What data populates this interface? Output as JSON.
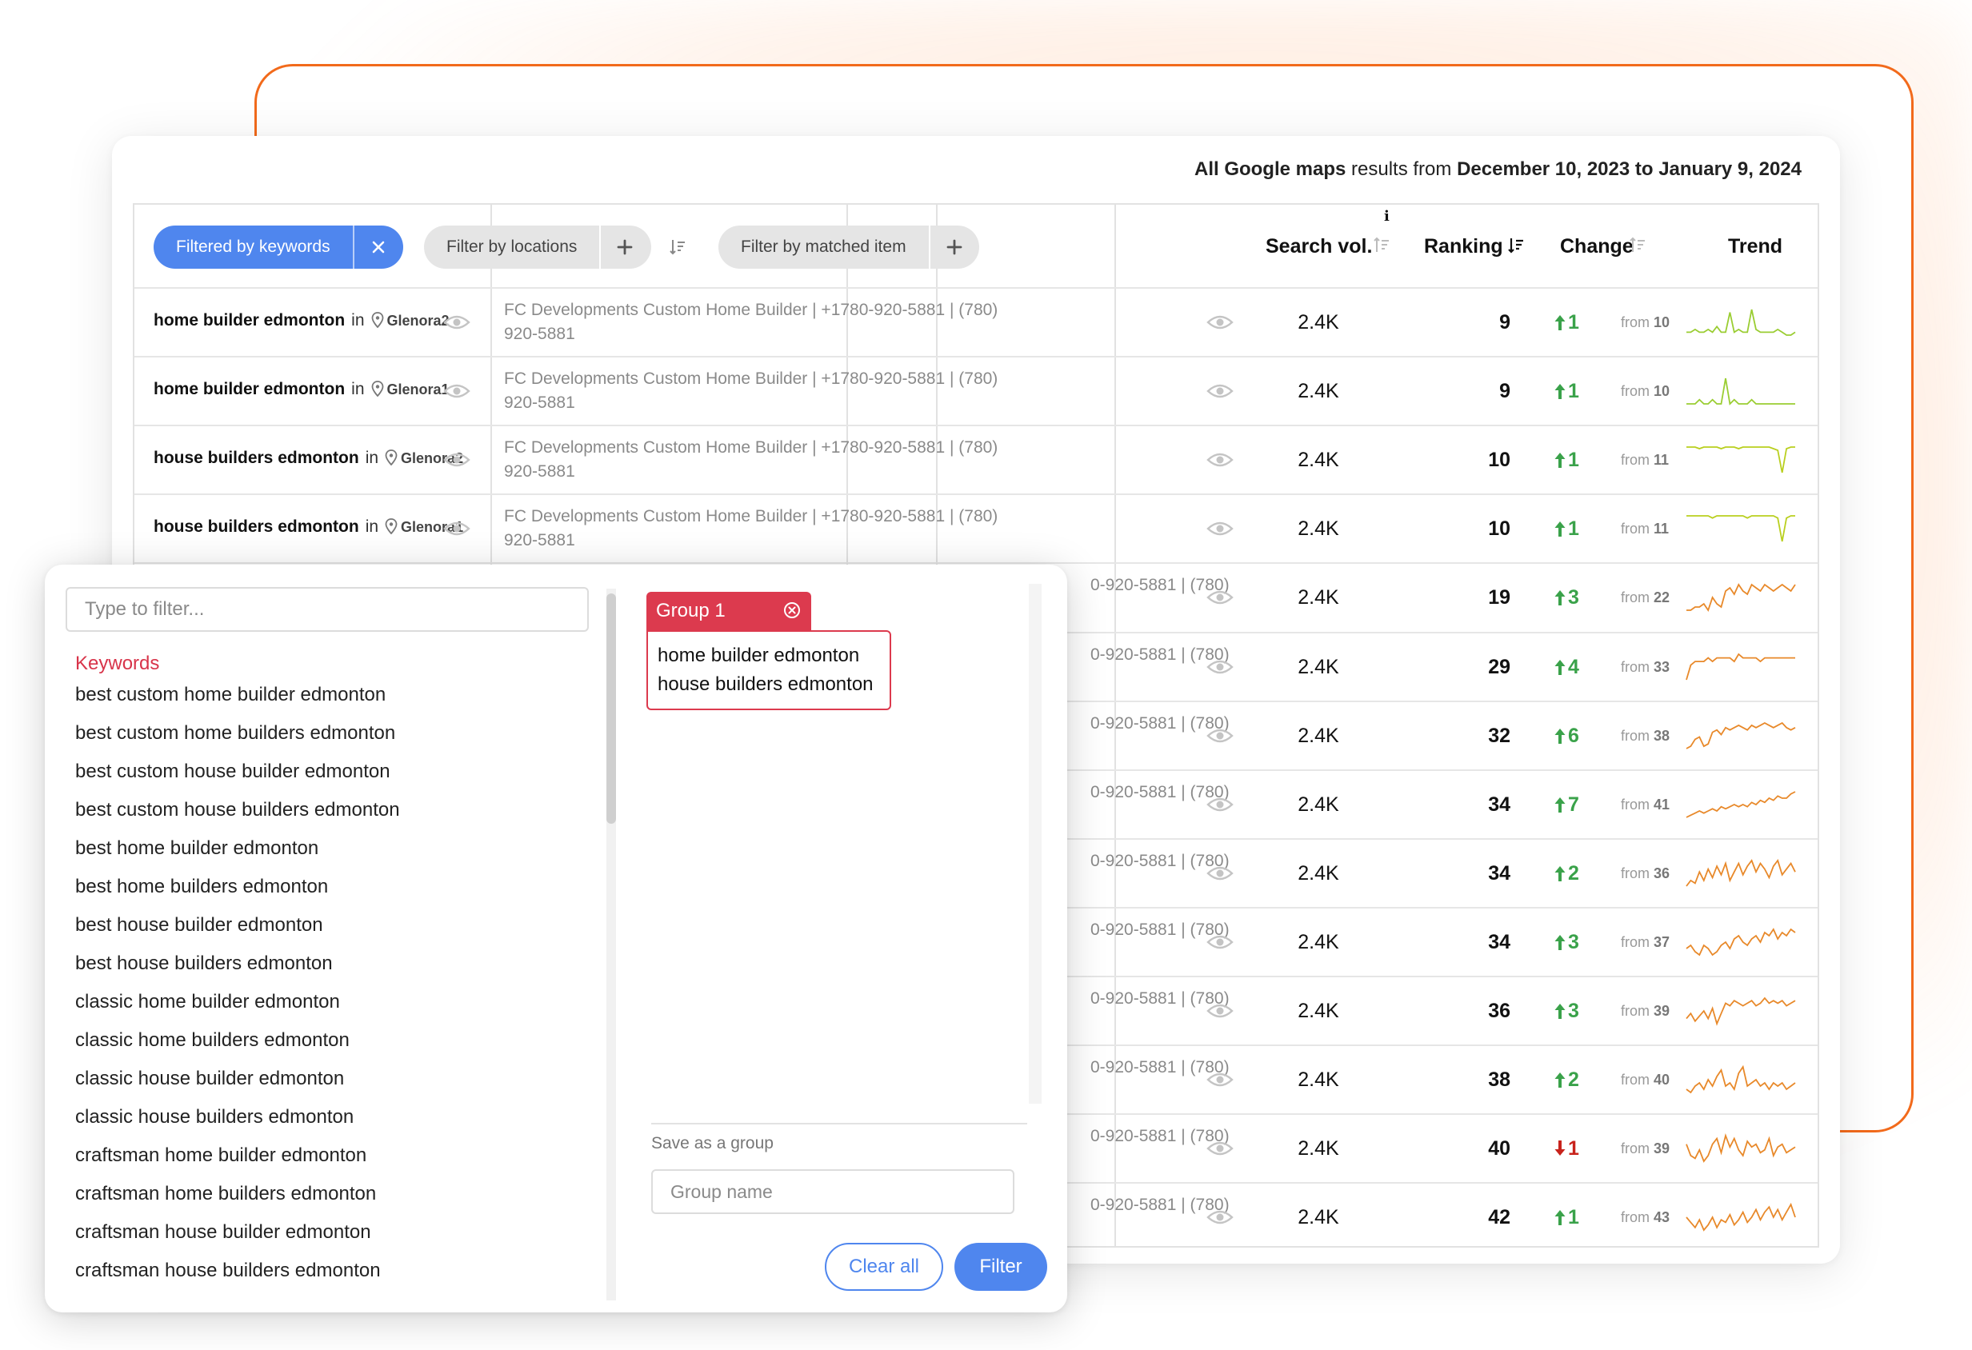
{
  "header": {
    "prefix": "All Google maps",
    "middle": " results from ",
    "range": "December 10, 2023 to January 9, 2024"
  },
  "filters": {
    "keywords_label": "Filtered by keywords",
    "locations_label": "Filter by locations",
    "matched_label": "Filter by matched item"
  },
  "columns": {
    "search_vol": "Search vol.",
    "ranking": "Ranking",
    "change": "Change",
    "trend": "Trend",
    "info": "i"
  },
  "rows": [
    {
      "keyword": "home builder edmonton",
      "in": "in",
      "location": "Glenora2",
      "matched1": "FC Developments Custom Home Builder | +1780-920-5881 | (780)",
      "matched2": "920-5881",
      "vol": "2.4K",
      "rank": "9",
      "dir": "up",
      "change": "1",
      "from_label": "from",
      "from": "10",
      "trend": [
        5,
        5,
        6,
        5,
        5,
        6,
        5,
        7,
        5,
        5,
        12,
        5,
        6,
        5,
        5,
        13,
        6,
        5,
        5,
        5,
        5,
        6,
        5,
        4,
        4,
        5
      ],
      "trend_color": "#9acd32"
    },
    {
      "keyword": "home builder edmonton",
      "in": "in",
      "location": "Glenora1",
      "matched1": "FC Developments Custom Home Builder | +1780-920-5881 | (780)",
      "matched2": "920-5881",
      "vol": "2.4K",
      "rank": "9",
      "dir": "up",
      "change": "1",
      "from_label": "from",
      "from": "10",
      "trend": [
        5,
        5,
        5,
        6,
        5,
        5,
        6,
        5,
        5,
        11,
        5,
        6,
        5,
        5,
        5,
        6,
        5,
        5,
        5,
        5,
        5,
        5,
        5,
        5,
        5,
        5
      ],
      "trend_color": "#9acd32"
    },
    {
      "keyword": "house builders edmonton",
      "in": "in",
      "location": "Glenora2",
      "matched1": "FC Developments Custom Home Builder | +1780-920-5881 | (780)",
      "matched2": "920-5881",
      "vol": "2.4K",
      "rank": "10",
      "dir": "up",
      "change": "1",
      "from_label": "from",
      "from": "11",
      "trend": [
        10,
        10,
        10,
        9,
        10,
        10,
        10,
        10,
        9,
        10,
        10,
        10,
        9,
        10,
        10,
        10,
        10,
        10,
        10,
        10,
        9,
        8,
        -6,
        9,
        10,
        10
      ],
      "trend_color": "#b9cf1e"
    },
    {
      "keyword": "house builders edmonton",
      "in": "in",
      "location": "Glenora1",
      "matched1": "FC Developments Custom Home Builder | +1780-920-5881 | (780)",
      "matched2": "920-5881",
      "vol": "2.4K",
      "rank": "10",
      "dir": "up",
      "change": "1",
      "from_label": "from",
      "from": "11",
      "trend": [
        10,
        10,
        10,
        10,
        10,
        10,
        9,
        10,
        10,
        10,
        10,
        10,
        10,
        10,
        9,
        10,
        10,
        10,
        10,
        10,
        10,
        9,
        -2,
        9,
        10,
        10
      ],
      "trend_color": "#b9cf1e"
    },
    {
      "keyword": "",
      "in": "",
      "location": "",
      "matched1": "0-920-5881 | (780)",
      "matched2": "",
      "vol": "2.4K",
      "rank": "19",
      "dir": "up",
      "change": "3",
      "from_label": "from",
      "from": "22",
      "trend": [
        4,
        4,
        5,
        5,
        6,
        4,
        8,
        6,
        5,
        10,
        11,
        9,
        12,
        10,
        9,
        12,
        11,
        10,
        12,
        11,
        10,
        11,
        12,
        11,
        10,
        12
      ],
      "trend_color": "#e8892a"
    },
    {
      "keyword": "",
      "in": "",
      "location": "",
      "matched1": "0-920-5881 | (780)",
      "matched2": "",
      "vol": "2.4K",
      "rank": "29",
      "dir": "up",
      "change": "4",
      "from_label": "from",
      "from": "33",
      "trend": [
        4,
        8,
        9,
        9,
        9,
        10,
        9,
        10,
        10,
        10,
        10,
        9,
        11,
        10,
        10,
        10,
        10,
        9,
        10,
        10,
        10,
        10,
        10,
        10,
        10,
        10
      ],
      "trend_color": "#e8892a"
    },
    {
      "keyword": "",
      "in": "",
      "location": "",
      "matched1": "0-920-5881 | (780)",
      "matched2": "",
      "vol": "2.4K",
      "rank": "32",
      "dir": "up",
      "change": "6",
      "from_label": "from",
      "from": "38",
      "trend": [
        3,
        4,
        7,
        8,
        4,
        5,
        10,
        11,
        9,
        12,
        11,
        12,
        13,
        12,
        11,
        13,
        12,
        13,
        14,
        13,
        12,
        13,
        14,
        12,
        11,
        12
      ],
      "trend_color": "#e8892a"
    },
    {
      "keyword": "",
      "in": "",
      "location": "",
      "matched1": "0-920-5881 | (780)",
      "matched2": "",
      "vol": "2.4K",
      "rank": "34",
      "dir": "up",
      "change": "7",
      "from_label": "from",
      "from": "41",
      "trend": [
        3,
        4,
        5,
        6,
        5,
        6,
        7,
        6,
        8,
        7,
        8,
        9,
        8,
        9,
        8,
        10,
        9,
        11,
        10,
        12,
        11,
        13,
        12,
        12,
        14,
        15
      ],
      "trend_color": "#e8892a"
    },
    {
      "keyword": "",
      "in": "",
      "location": "",
      "matched1": "0-920-5881 | (780)",
      "matched2": "",
      "vol": "2.4K",
      "rank": "34",
      "dir": "up",
      "change": "2",
      "from_label": "from",
      "from": "36",
      "trend": [
        4,
        6,
        5,
        9,
        6,
        10,
        7,
        11,
        8,
        12,
        6,
        9,
        12,
        8,
        11,
        13,
        9,
        12,
        10,
        7,
        11,
        13,
        8,
        10,
        12,
        9
      ],
      "trend_color": "#e8892a"
    },
    {
      "keyword": "",
      "in": "",
      "location": "",
      "matched1": "0-920-5881 | (780)",
      "matched2": "",
      "vol": "2.4K",
      "rank": "34",
      "dir": "up",
      "change": "3",
      "from_label": "from",
      "from": "37",
      "trend": [
        7,
        8,
        6,
        5,
        8,
        7,
        5,
        6,
        8,
        9,
        7,
        10,
        11,
        9,
        8,
        10,
        11,
        9,
        12,
        11,
        13,
        10,
        12,
        11,
        13,
        12
      ],
      "trend_color": "#e8892a"
    },
    {
      "keyword": "",
      "in": "",
      "location": "",
      "matched1": "0-920-5881 | (780)",
      "matched2": "",
      "vol": "2.4K",
      "rank": "36",
      "dir": "up",
      "change": "3",
      "from_label": "from",
      "from": "39",
      "trend": [
        6,
        8,
        5,
        7,
        9,
        6,
        10,
        4,
        8,
        12,
        11,
        13,
        12,
        11,
        12,
        13,
        11,
        12,
        14,
        12,
        13,
        12,
        13,
        11,
        12,
        13
      ],
      "trend_color": "#e8892a"
    },
    {
      "keyword": "",
      "in": "",
      "location": "",
      "matched1": "0-920-5881 | (780)",
      "matched2": "",
      "vol": "2.4K",
      "rank": "38",
      "dir": "up",
      "change": "2",
      "from_label": "from",
      "from": "40",
      "trend": [
        8,
        7,
        9,
        10,
        8,
        11,
        9,
        12,
        14,
        9,
        10,
        8,
        13,
        15,
        9,
        10,
        11,
        9,
        10,
        8,
        10,
        9,
        10,
        8,
        9,
        10
      ],
      "trend_color": "#e8892a"
    },
    {
      "keyword": "",
      "in": "",
      "location": "",
      "matched1": "0-920-5881 | (780)",
      "matched2": "",
      "vol": "2.4K",
      "rank": "40",
      "dir": "down",
      "change": "1",
      "from_label": "from",
      "from": "39",
      "trend": [
        10,
        6,
        5,
        8,
        4,
        6,
        10,
        12,
        7,
        13,
        9,
        12,
        8,
        6,
        11,
        9,
        10,
        7,
        8,
        12,
        6,
        9,
        10,
        7,
        8,
        9
      ],
      "trend_color": "#e8892a"
    },
    {
      "keyword": "",
      "in": "",
      "location": "",
      "matched1": "0-920-5881 | (780)",
      "matched2": "",
      "vol": "2.4K",
      "rank": "42",
      "dir": "up",
      "change": "1",
      "from_label": "from",
      "from": "43",
      "trend": [
        10,
        8,
        6,
        9,
        5,
        7,
        10,
        6,
        9,
        8,
        11,
        7,
        9,
        12,
        8,
        10,
        13,
        9,
        12,
        14,
        10,
        13,
        9,
        12,
        15,
        10
      ],
      "trend_color": "#e8892a"
    }
  ],
  "popup": {
    "filter_placeholder": "Type to filter...",
    "keywords_heading": "Keywords",
    "keywords": [
      "best custom home builder edmonton",
      "best custom home builders edmonton",
      "best custom house builder edmonton",
      "best custom house builders edmonton",
      "best home builder edmonton",
      "best home builders edmonton",
      "best house builder edmonton",
      "best house builders edmonton",
      "classic home builder edmonton",
      "classic home builders edmonton",
      "classic house builder edmonton",
      "classic house builders edmonton",
      "craftsman home builder edmonton",
      "craftsman home builders edmonton",
      "craftsman house builder edmonton",
      "craftsman house builders edmonton"
    ],
    "group_label": "Group 1",
    "group_items": [
      "home builder edmonton",
      "house builders edmonton"
    ],
    "save_label": "Save as a group",
    "group_placeholder": "Group name",
    "clear_label": "Clear all",
    "filter_label": "Filter"
  },
  "colors": {
    "accent": "#4f86ee",
    "group": "#dc3a4e",
    "up": "#3aa24a",
    "down": "#c8231c",
    "frame": "#f26a1b"
  },
  "icons": {
    "close": "close-icon",
    "plus": "plus-icon",
    "sort": "sort-icon",
    "pin": "location-pin-icon",
    "eye": "eye-icon",
    "info": "info-icon"
  }
}
